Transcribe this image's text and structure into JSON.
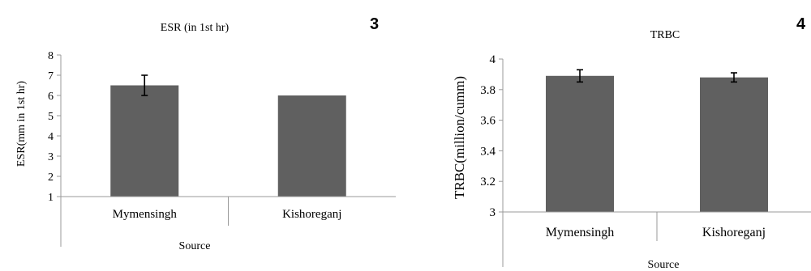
{
  "colors": {
    "bar": "#606060",
    "axis": "#999999",
    "text": "#000000"
  },
  "panels": [
    {
      "label": "3"
    },
    {
      "label": "4"
    }
  ],
  "chart_data": [
    {
      "type": "bar",
      "title": "ESR (in 1st hr)",
      "xlabel": "Source",
      "ylabel": "ESR(mm in 1st hr)",
      "categories": [
        "Mymensingh",
        "Kishoreganj"
      ],
      "values": [
        6.5,
        6.0
      ],
      "error": [
        0.5,
        null
      ],
      "ylim": [
        1,
        8
      ],
      "yticks": [
        "1",
        "2",
        "3",
        "4",
        "5",
        "6",
        "7",
        "8"
      ],
      "grid": false
    },
    {
      "type": "bar",
      "title": "TRBC",
      "xlabel": "Source",
      "ylabel": "TRBC(million/cumm)",
      "categories": [
        "Mymensingh",
        "Kishoreganj"
      ],
      "values": [
        3.89,
        3.88
      ],
      "error": [
        0.04,
        0.03
      ],
      "ylim": [
        3,
        4
      ],
      "yticks": [
        "3",
        "3.2",
        "3.4",
        "3.6",
        "3.8",
        "4"
      ],
      "grid": false
    }
  ]
}
